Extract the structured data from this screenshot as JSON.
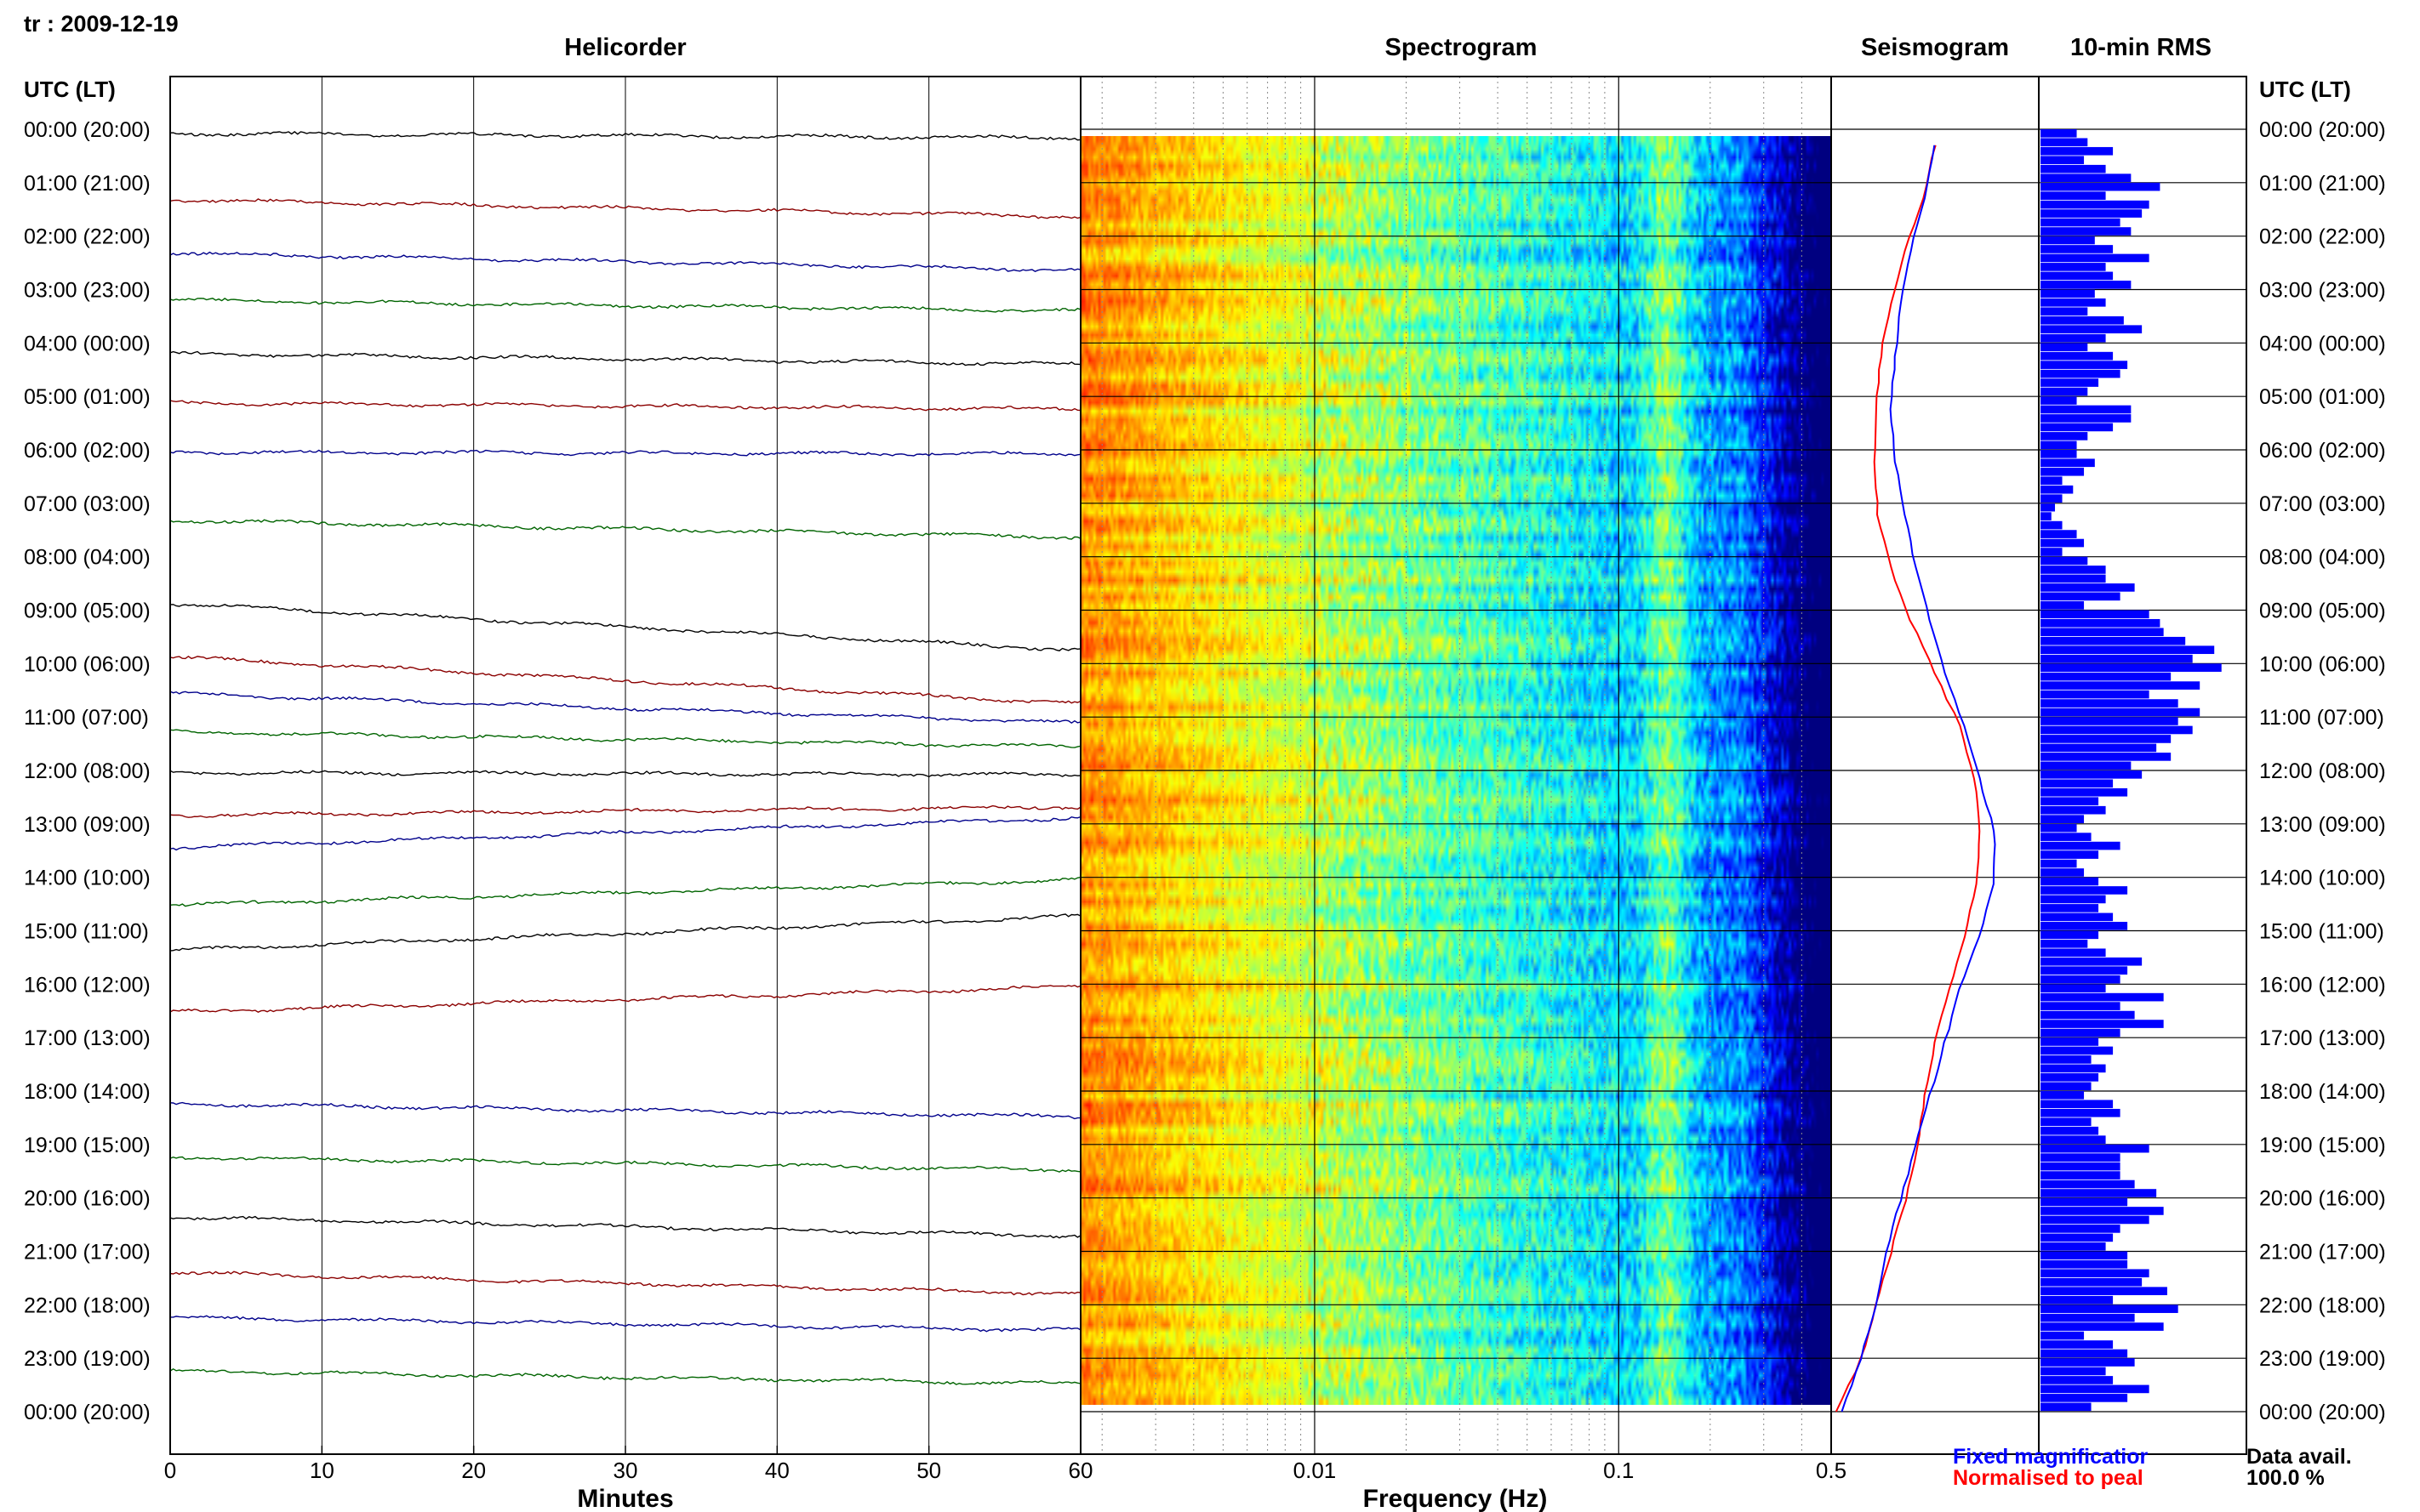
{
  "station_label": "tr : 2009-12-19",
  "panels": {
    "helicorder": "Helicorder",
    "spectrogram": "Spectrogram",
    "seismogram": "Seismogram",
    "rms": "10-min RMS"
  },
  "time_axis_title": "UTC (LT)",
  "hour_labels": [
    "00:00 (20:00)",
    "01:00 (21:00)",
    "02:00 (22:00)",
    "03:00 (23:00)",
    "04:00 (00:00)",
    "05:00 (01:00)",
    "06:00 (02:00)",
    "07:00 (03:00)",
    "08:00 (04:00)",
    "09:00 (05:00)",
    "10:00 (06:00)",
    "11:00 (07:00)",
    "12:00 (08:00)",
    "13:00 (09:00)",
    "14:00 (10:00)",
    "15:00 (11:00)",
    "16:00 (12:00)",
    "17:00 (13:00)",
    "18:00 (14:00)",
    "19:00 (15:00)",
    "20:00 (16:00)",
    "21:00 (17:00)",
    "22:00 (18:00)",
    "23:00 (19:00)",
    "00:00 (20:00)"
  ],
  "helicorder_axis": {
    "title": "Minutes",
    "ticks": [
      "0",
      "10",
      "20",
      "30",
      "40",
      "50",
      "60"
    ]
  },
  "frequency_axis": {
    "title": "Frequency (Hz)",
    "ticks": [
      "0.01",
      "0.1",
      "0.5"
    ]
  },
  "legend": {
    "fixed": "Fixed magnificatior",
    "normalised": "Normalised to peal"
  },
  "availability": {
    "label": "Data avail.",
    "value": "100.0 %"
  },
  "colors": {
    "trace_cycle": [
      "#000000",
      "#8b0000",
      "#00008b",
      "#006400"
    ],
    "fixed": "#0000ff",
    "normalised": "#ff0000",
    "rms_bar": "#0000ff"
  },
  "chart_data": {
    "type": "helicorder",
    "trace_count": 24,
    "helicorder_minutes_range": [
      0,
      60
    ],
    "spectrogram_frequency_range_hz": [
      0.0017,
      0.5
    ],
    "spectrogram_log_scale": true,
    "seismogram_fixed": [
      0.0,
      -0.1,
      -0.25,
      -0.35,
      -0.4,
      -0.45,
      -0.4,
      -0.3,
      -0.2,
      -0.05,
      0.1,
      0.3,
      0.45,
      0.6,
      0.6,
      0.45,
      0.25,
      0.1,
      -0.05,
      -0.2,
      -0.35,
      -0.5,
      -0.6,
      -0.75,
      -0.95
    ],
    "seismogram_normalised": [
      0.0,
      -0.12,
      -0.3,
      -0.45,
      -0.55,
      -0.6,
      -0.62,
      -0.58,
      -0.45,
      -0.25,
      0.0,
      0.25,
      0.4,
      0.45,
      0.42,
      0.3,
      0.15,
      0.0,
      -0.1,
      -0.18,
      -0.3,
      -0.45,
      -0.6,
      -0.75,
      -1.0
    ],
    "rms_values": [
      10,
      13,
      20,
      12,
      18,
      25,
      33,
      18,
      30,
      28,
      22,
      25,
      15,
      20,
      30,
      18,
      20,
      25,
      15,
      18,
      13,
      23,
      28,
      18,
      13,
      20,
      24,
      22,
      16,
      13,
      10,
      25,
      25,
      20,
      13,
      10,
      10,
      15,
      12,
      6,
      9,
      6,
      4,
      3,
      6,
      10,
      12,
      6,
      13,
      18,
      18,
      26,
      22,
      12,
      30,
      33,
      34,
      40,
      48,
      42,
      50,
      36,
      44,
      30,
      38,
      44,
      38,
      42,
      36,
      32,
      36,
      25,
      28,
      20,
      24,
      16,
      18,
      12,
      10,
      14,
      22,
      16,
      10,
      12,
      16,
      24,
      18,
      16,
      20,
      24,
      16,
      13,
      18,
      28,
      24,
      22,
      18,
      34,
      22,
      26,
      34,
      22,
      16,
      20,
      14,
      18,
      16,
      14,
      12,
      20,
      22,
      14,
      16,
      18,
      30,
      22,
      22,
      22,
      26,
      32,
      24,
      34,
      30,
      22,
      20,
      18,
      24,
      24,
      30,
      28,
      35,
      20,
      38,
      26,
      34,
      12,
      20,
      24,
      26,
      18,
      20,
      30,
      24,
      14
    ]
  }
}
